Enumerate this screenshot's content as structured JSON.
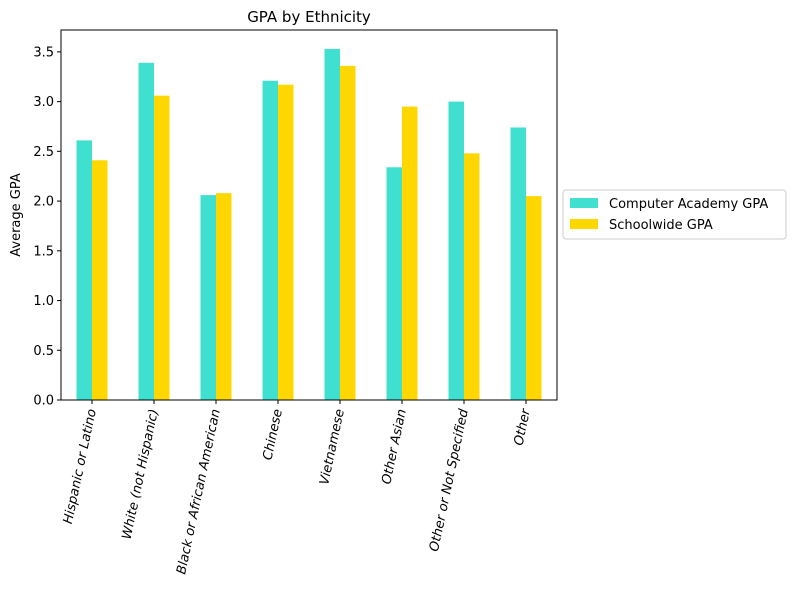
{
  "chart_data": {
    "type": "bar",
    "title": "GPA by Ethnicity",
    "xlabel": "",
    "ylabel": "Average GPA",
    "ylim": [
      0,
      3.72
    ],
    "yticks": [
      0.0,
      0.5,
      1.0,
      1.5,
      2.0,
      2.5,
      3.0,
      3.5
    ],
    "ytick_labels": [
      "0.0",
      "0.5",
      "1.0",
      "1.5",
      "2.0",
      "2.5",
      "3.0",
      "3.5"
    ],
    "categories": [
      "Hispanic or Latino",
      "White (not Hispanic)",
      "Black or African American",
      "Chinese",
      "Vietnamese",
      "Other Asian",
      "Other or Not Specified",
      "Other"
    ],
    "series": [
      {
        "name": "Computer Academy GPA",
        "color": "#40E0D0",
        "values": [
          2.61,
          3.39,
          2.06,
          3.21,
          3.53,
          2.34,
          3.0,
          2.74
        ]
      },
      {
        "name": "Schoolwide GPA",
        "color": "#FFD700",
        "values": [
          2.41,
          3.06,
          2.08,
          3.17,
          3.36,
          2.95,
          2.48,
          2.05
        ]
      }
    ],
    "grid": false,
    "legend_position": "center-right"
  }
}
